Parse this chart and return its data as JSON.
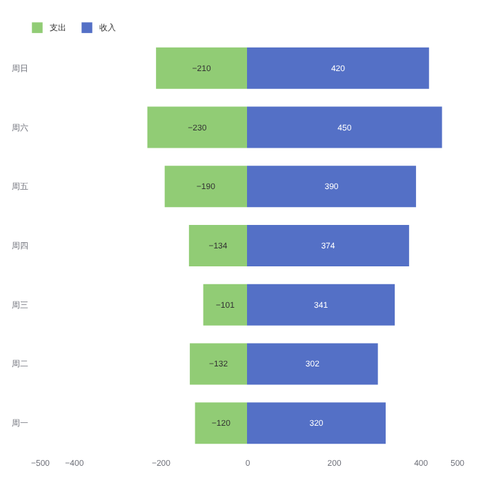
{
  "chart_data": {
    "type": "bar",
    "orientation": "horizontal",
    "stacked": true,
    "categories": [
      "周日",
      "周六",
      "周五",
      "周四",
      "周三",
      "周二",
      "周一"
    ],
    "series": [
      {
        "name": "支出",
        "color": "#91cc75",
        "values": [
          -210,
          -230,
          -190,
          -134,
          -101,
          -132,
          -120
        ]
      },
      {
        "name": "收入",
        "color": "#5470c6",
        "values": [
          420,
          450,
          390,
          374,
          341,
          302,
          320
        ]
      }
    ],
    "xlim": [
      -500,
      500
    ],
    "xticks": [
      -500,
      -400,
      -200,
      0,
      200,
      400,
      500
    ],
    "data_labels": true,
    "legend": "top",
    "grid": false
  }
}
